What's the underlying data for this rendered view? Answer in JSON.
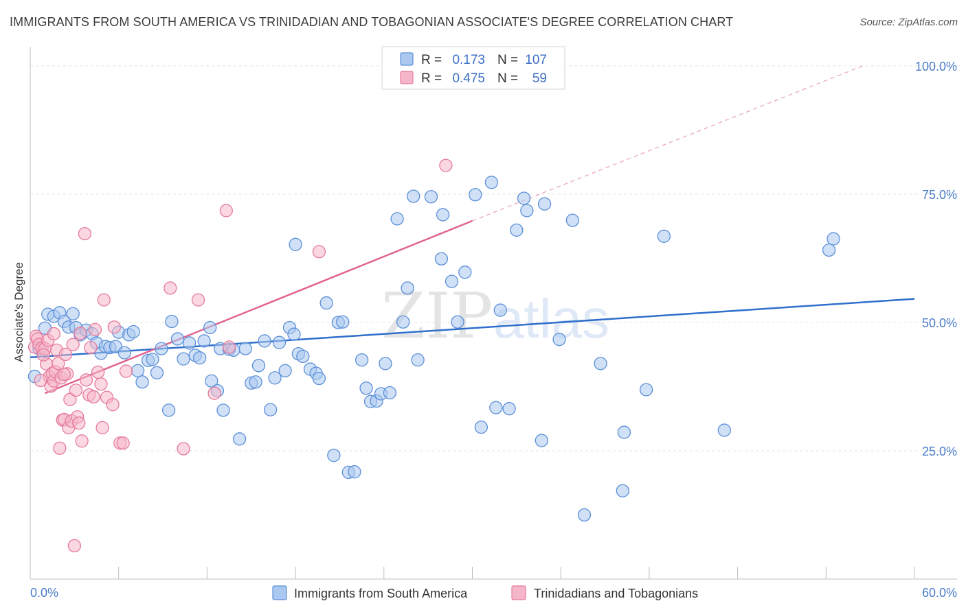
{
  "header": {
    "title": "IMMIGRANTS FROM SOUTH AMERICA VS TRINIDADIAN AND TOBAGONIAN ASSOCIATE'S DEGREE CORRELATION CHART",
    "source": "Source: ZipAtlas.com"
  },
  "watermark": {
    "zip": "ZIP",
    "atlas": "atlas"
  },
  "colors": {
    "blue_fill": "#aac8f0",
    "blue_stroke": "#5b8fd8",
    "blue_line": "#2f6fcc",
    "pink_fill": "#f6b6c9",
    "pink_stroke": "#e57a9c",
    "pink_line": "#e0648e",
    "tick": "#4a7cc9",
    "grid": "#e3e3e3"
  },
  "legend": {
    "r_label": "R =",
    "n_label": "N =",
    "rows": [
      {
        "r": "0.173",
        "n": "107"
      },
      {
        "r": "0.475",
        "n": "59"
      }
    ]
  },
  "bottom_legend": [
    "Immigrants from South America",
    "Trinidadians and Tobagonians"
  ],
  "chart_data": {
    "type": "scatter",
    "title": "IMMIGRANTS FROM SOUTH AMERICA VS TRINIDADIAN AND TOBAGONIAN ASSOCIATE'S DEGREE CORRELATION CHART",
    "xlabel": "",
    "ylabel": "Associate's Degree",
    "xlim": [
      0,
      60
    ],
    "ylim": [
      0,
      100
    ],
    "x_tick_labels": [
      "0.0%",
      "60.0%"
    ],
    "y_ticks": [
      25,
      50,
      75,
      100
    ],
    "y_tick_labels": [
      "25.0%",
      "50.0%",
      "75.0%",
      "100.0%"
    ],
    "grid": true,
    "legend_position": "top-center",
    "series": [
      {
        "name": "Immigrants from South America",
        "r": 0.173,
        "n": 107,
        "trend": {
          "x": [
            0,
            60
          ],
          "y": [
            43.2,
            54.6
          ]
        },
        "points": [
          [
            0.3,
            39.5
          ],
          [
            0.6,
            44.9
          ],
          [
            1.0,
            48.9
          ],
          [
            1.2,
            51.6
          ],
          [
            1.6,
            51.2
          ],
          [
            2.0,
            51.9
          ],
          [
            2.3,
            50.2
          ],
          [
            2.6,
            49.1
          ],
          [
            2.9,
            51.7
          ],
          [
            3.1,
            49.0
          ],
          [
            3.4,
            47.6
          ],
          [
            3.8,
            48.5
          ],
          [
            4.2,
            47.8
          ],
          [
            4.5,
            46.0
          ],
          [
            4.8,
            44.0
          ],
          [
            5.1,
            45.3
          ],
          [
            5.4,
            45.1
          ],
          [
            5.8,
            45.3
          ],
          [
            6.0,
            48.1
          ],
          [
            6.4,
            44.1
          ],
          [
            6.7,
            47.6
          ],
          [
            7.0,
            48.2
          ],
          [
            7.3,
            40.6
          ],
          [
            7.6,
            38.4
          ],
          [
            8.0,
            42.6
          ],
          [
            8.3,
            42.8
          ],
          [
            8.6,
            40.2
          ],
          [
            8.9,
            44.9
          ],
          [
            9.6,
            50.2
          ],
          [
            9.4,
            32.9
          ],
          [
            10.0,
            46.8
          ],
          [
            10.4,
            42.9
          ],
          [
            10.8,
            46.0
          ],
          [
            11.2,
            43.6
          ],
          [
            11.5,
            43.1
          ],
          [
            11.8,
            46.4
          ],
          [
            12.3,
            38.6
          ],
          [
            12.7,
            36.7
          ],
          [
            12.2,
            49.0
          ],
          [
            12.9,
            44.9
          ],
          [
            13.5,
            44.8
          ],
          [
            13.8,
            44.6
          ],
          [
            13.1,
            32.9
          ],
          [
            14.2,
            27.3
          ],
          [
            14.6,
            44.9
          ],
          [
            15.0,
            38.2
          ],
          [
            15.3,
            38.4
          ],
          [
            15.5,
            41.6
          ],
          [
            15.9,
            46.4
          ],
          [
            16.3,
            33.0
          ],
          [
            16.6,
            39.2
          ],
          [
            16.9,
            46.1
          ],
          [
            17.3,
            40.6
          ],
          [
            17.6,
            49.0
          ],
          [
            17.9,
            47.7
          ],
          [
            18.2,
            43.9
          ],
          [
            18.5,
            43.4
          ],
          [
            18.0,
            65.2
          ],
          [
            19.0,
            40.9
          ],
          [
            19.4,
            40.1
          ],
          [
            19.6,
            39.1
          ],
          [
            20.1,
            53.8
          ],
          [
            20.6,
            24.1
          ],
          [
            20.9,
            50.0
          ],
          [
            21.2,
            50.1
          ],
          [
            21.6,
            20.8
          ],
          [
            22.0,
            20.9
          ],
          [
            22.5,
            42.7
          ],
          [
            22.8,
            37.2
          ],
          [
            23.1,
            34.6
          ],
          [
            23.5,
            34.7
          ],
          [
            23.8,
            36.1
          ],
          [
            24.1,
            42.0
          ],
          [
            24.4,
            36.3
          ],
          [
            24.9,
            70.2
          ],
          [
            25.3,
            50.1
          ],
          [
            25.6,
            56.7
          ],
          [
            26.0,
            74.6
          ],
          [
            26.3,
            42.7
          ],
          [
            27.2,
            74.5
          ],
          [
            27.9,
            62.4
          ],
          [
            28.0,
            71.0
          ],
          [
            28.6,
            58.0
          ],
          [
            29.0,
            50.1
          ],
          [
            29.5,
            59.8
          ],
          [
            30.2,
            74.9
          ],
          [
            30.6,
            29.6
          ],
          [
            31.3,
            77.3
          ],
          [
            31.9,
            52.4
          ],
          [
            31.6,
            33.4
          ],
          [
            32.5,
            33.2
          ],
          [
            33.0,
            68.0
          ],
          [
            33.5,
            74.2
          ],
          [
            33.7,
            71.8
          ],
          [
            34.7,
            27.0
          ],
          [
            34.9,
            73.1
          ],
          [
            35.9,
            46.7
          ],
          [
            36.8,
            69.9
          ],
          [
            37.6,
            12.5
          ],
          [
            38.7,
            42.0
          ],
          [
            40.2,
            17.2
          ],
          [
            40.3,
            28.6
          ],
          [
            43.0,
            66.8
          ],
          [
            47.1,
            29.0
          ],
          [
            54.2,
            64.1
          ],
          [
            54.5,
            66.3
          ],
          [
            41.8,
            36.9
          ]
        ]
      },
      {
        "name": "Trinidadians and Tobagonians",
        "r": 0.475,
        "n": 59,
        "trend": {
          "x": [
            1,
            30
          ],
          "y": [
            36.2,
            69.8
          ]
        },
        "trend_dashed": {
          "x": [
            30,
            56.5
          ],
          "y": [
            69.8,
            100.0
          ]
        },
        "points": [
          [
            0.3,
            45.2
          ],
          [
            0.4,
            47.3
          ],
          [
            0.5,
            46.8
          ],
          [
            0.6,
            45.7
          ],
          [
            0.8,
            45.0
          ],
          [
            1.0,
            44.9
          ],
          [
            1.1,
            41.9
          ],
          [
            1.3,
            39.4
          ],
          [
            1.4,
            37.6
          ],
          [
            1.5,
            40.1
          ],
          [
            1.6,
            38.6
          ],
          [
            1.7,
            40.4
          ],
          [
            1.8,
            44.6
          ],
          [
            1.9,
            42.0
          ],
          [
            2.0,
            25.5
          ],
          [
            2.1,
            39.2
          ],
          [
            2.2,
            31.0
          ],
          [
            2.3,
            31.1
          ],
          [
            2.4,
            43.8
          ],
          [
            2.5,
            40.0
          ],
          [
            2.6,
            29.5
          ],
          [
            2.7,
            35.0
          ],
          [
            2.8,
            30.8
          ],
          [
            2.9,
            45.7
          ],
          [
            3.0,
            6.5
          ],
          [
            3.1,
            36.8
          ],
          [
            3.2,
            31.6
          ],
          [
            3.3,
            30.4
          ],
          [
            3.5,
            26.9
          ],
          [
            3.7,
            67.3
          ],
          [
            3.8,
            38.8
          ],
          [
            4.0,
            35.9
          ],
          [
            4.3,
            35.5
          ],
          [
            4.4,
            48.6
          ],
          [
            4.6,
            40.3
          ],
          [
            4.8,
            38.0
          ],
          [
            4.9,
            29.5
          ],
          [
            5.0,
            54.4
          ],
          [
            5.2,
            35.4
          ],
          [
            5.6,
            34.0
          ],
          [
            5.7,
            49.1
          ],
          [
            6.1,
            26.5
          ],
          [
            6.3,
            26.5
          ],
          [
            6.5,
            40.5
          ],
          [
            9.5,
            56.7
          ],
          [
            10.4,
            25.4
          ],
          [
            11.4,
            54.4
          ],
          [
            12.5,
            36.2
          ],
          [
            13.3,
            71.8
          ],
          [
            13.5,
            45.2
          ],
          [
            19.6,
            63.8
          ],
          [
            28.2,
            80.6
          ],
          [
            1.2,
            46.5
          ],
          [
            0.9,
            43.7
          ],
          [
            1.6,
            47.8
          ],
          [
            2.3,
            39.9
          ],
          [
            3.4,
            47.9
          ],
          [
            0.7,
            38.7
          ],
          [
            4.1,
            45.1
          ]
        ]
      }
    ]
  }
}
